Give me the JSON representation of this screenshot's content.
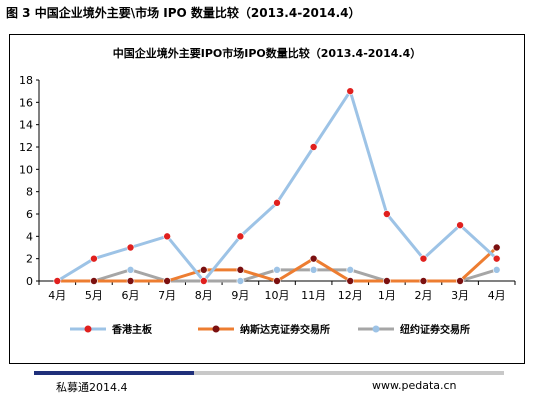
{
  "caption": "图 3  中国企业境外主要\\市场 IPO 数量比较（2013.4-2014.4）",
  "chart_data": {
    "type": "line",
    "title": "中国企业境外主要IPO市场IPO数量比较（2013.4-2014.4）",
    "categories": [
      "4月",
      "5月",
      "6月",
      "7月",
      "8月",
      "9月",
      "10月",
      "11月",
      "12月",
      "1月",
      "2月",
      "3月",
      "4月"
    ],
    "ylim": [
      0,
      18
    ],
    "yticks": [
      0,
      2,
      4,
      6,
      8,
      10,
      12,
      14,
      16,
      18
    ],
    "grid": false,
    "legend_position": "bottom",
    "series": [
      {
        "name": "香港主板",
        "values": [
          0,
          2,
          3,
          4,
          0,
          4,
          7,
          12,
          17,
          6,
          2,
          5,
          2
        ],
        "color": "#9dc3e6",
        "marker": "#e0201e"
      },
      {
        "name": "纳斯达克证券交易所",
        "values": [
          0,
          0,
          0,
          0,
          1,
          1,
          0,
          2,
          0,
          0,
          0,
          0,
          3
        ],
        "color": "#ed7d31",
        "marker": "#7b1010"
      },
      {
        "name": "纽约证券交易所",
        "values": [
          0,
          0,
          1,
          0,
          0,
          0,
          1,
          1,
          1,
          0,
          0,
          0,
          1
        ],
        "color": "#a6a6a6",
        "marker": "#9dc3e6"
      }
    ]
  },
  "footer": {
    "left": "私募通2014.4",
    "right": "www.pedata.cn"
  }
}
